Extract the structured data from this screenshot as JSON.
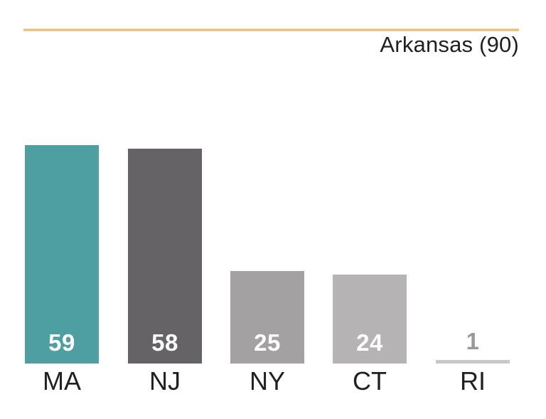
{
  "header": {
    "title": "Arkansas (90)",
    "title_color": "#231f20",
    "rule_color": "#e2c178"
  },
  "chart_data": {
    "type": "bar",
    "title": "Arkansas (90)",
    "categories": [
      "MA",
      "NJ",
      "NY",
      "CT",
      "RI"
    ],
    "values": [
      59,
      58,
      25,
      24,
      1
    ],
    "bar_colors": [
      "#4e9fa1",
      "#656366",
      "#a3a1a2",
      "#b5b3b4",
      "#c9c7c8"
    ],
    "value_label_color_inside": "#ffffff",
    "value_label_color_outside": "#9a989a",
    "category_label_color": "#231f20",
    "xlabel": "",
    "ylabel": "",
    "grid": false,
    "legend": false,
    "value_labels_shown": true
  }
}
